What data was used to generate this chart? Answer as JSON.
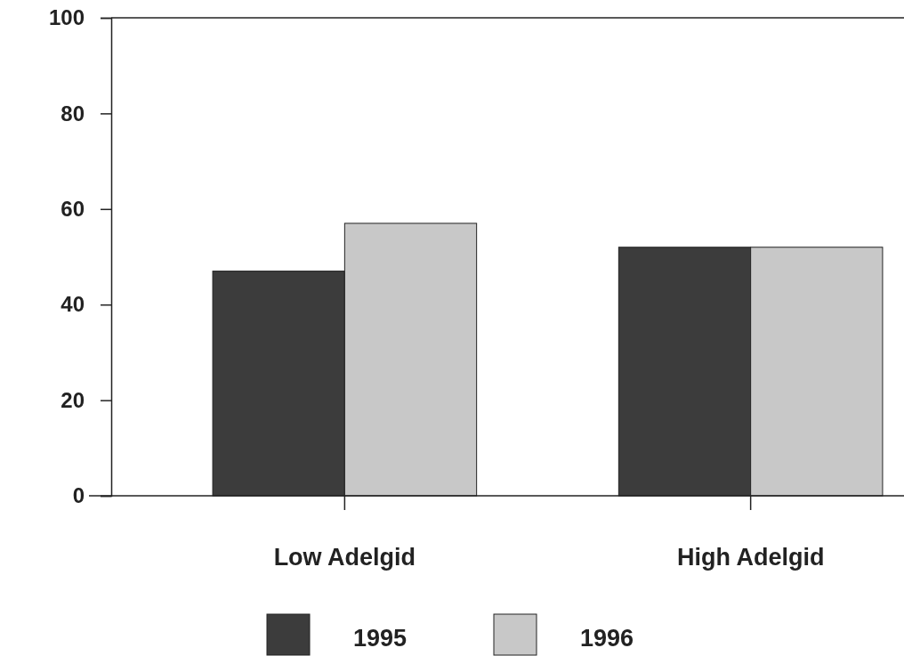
{
  "chart_data": {
    "type": "bar",
    "categories": [
      "Low Adelgid",
      "High Adelgid"
    ],
    "series": [
      {
        "name": "1995",
        "color": "#3c3c3c",
        "values": [
          47,
          52
        ]
      },
      {
        "name": "1996",
        "color": "#c8c8c8",
        "values": [
          57,
          52
        ]
      }
    ],
    "ylim": [
      0,
      100
    ],
    "yticks": [
      0,
      20,
      40,
      60,
      80,
      100
    ],
    "grid": false,
    "legend": "bottom"
  }
}
